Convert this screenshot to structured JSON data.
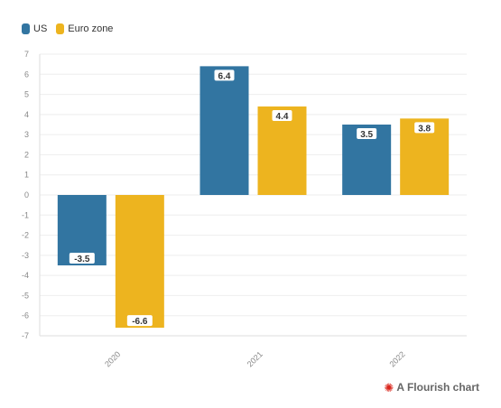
{
  "chart_data": {
    "type": "bar",
    "title": "",
    "xlabel": "",
    "ylabel": "",
    "categories": [
      "2020",
      "2021",
      "2022"
    ],
    "series": [
      {
        "name": "US",
        "color": "#3275a1",
        "values": [
          -3.5,
          6.4,
          3.5
        ]
      },
      {
        "name": "Euro zone",
        "color": "#edb41f",
        "values": [
          -6.6,
          4.4,
          3.8
        ]
      }
    ],
    "ylim": [
      -7,
      7
    ],
    "yticks": [
      7,
      6,
      5,
      4,
      3,
      2,
      1,
      0,
      -1,
      -2,
      -3,
      -4,
      -5,
      -6,
      -7
    ],
    "grid": true,
    "legend": "top-left",
    "data_labels": true
  },
  "credit": {
    "text": "A Flourish chart",
    "icon": "flourish-burst-icon",
    "icon_color": "#d9261c"
  }
}
